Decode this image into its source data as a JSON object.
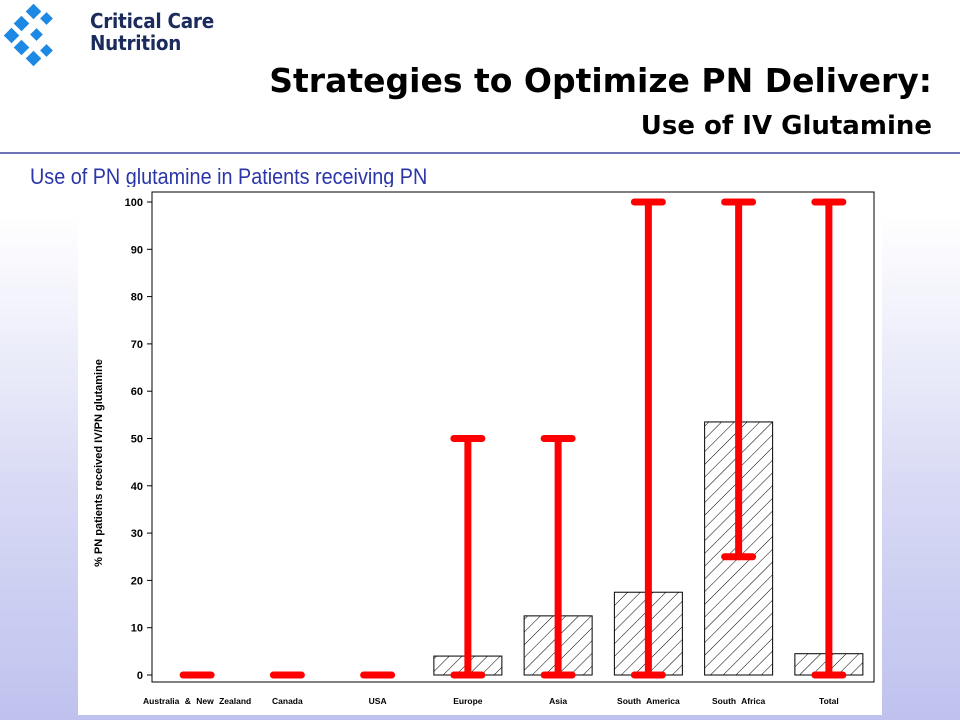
{
  "header": {
    "logo_line1": "Critical Care",
    "logo_line2": "Nutrition",
    "title": "Strategies to Optimize PN Delivery:",
    "subtitle": "Use of IV Glutamine",
    "caption": "Use of PN glutamine in Patients receiving PN"
  },
  "colors": {
    "error_bar": "#ff0000",
    "logo_blue": "#1e88e5",
    "caption_blue": "#2b36a8",
    "divider": "#6e73b8"
  },
  "chart_data": {
    "type": "bar",
    "ylabel": "% PN patients received IV/PN glutamine",
    "xlabel": "",
    "ylim": [
      0,
      100
    ],
    "yticks": [
      0,
      10,
      20,
      30,
      40,
      50,
      60,
      70,
      80,
      90,
      100
    ],
    "categories": [
      "Australia & New Zealand",
      "Canada",
      "USA",
      "Europe",
      "Asia",
      "South America",
      "South Africa",
      "Total"
    ],
    "values": [
      0,
      0,
      0,
      4,
      12.5,
      17.5,
      53.5,
      4.5
    ],
    "error_low": [
      0,
      0,
      0,
      0,
      0,
      0,
      25,
      0
    ],
    "error_high": [
      0,
      0,
      0,
      50,
      50,
      100,
      100,
      100
    ],
    "bar_fill": "hatched",
    "grid": false
  }
}
